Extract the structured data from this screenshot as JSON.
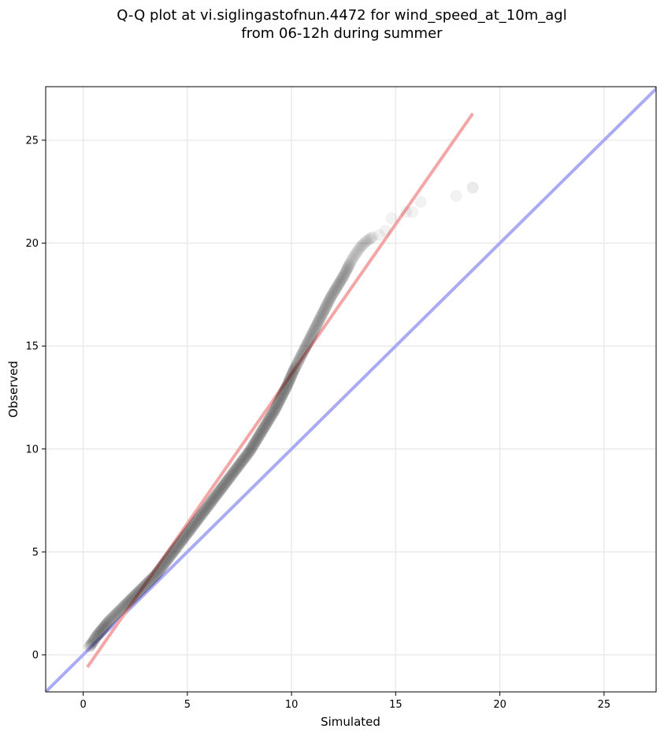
{
  "chart_data": {
    "type": "scatter",
    "title_lines": [
      "Q-Q plot at vi.siglingastofnun.4472 for wind_speed_at_10m_agl",
      "from 06-12h during summer"
    ],
    "xlabel": "Simulated",
    "ylabel": "Observed",
    "xlim": [
      -1.8,
      27.5
    ],
    "ylim": [
      -1.8,
      27.6
    ],
    "x_ticks": [
      0,
      5,
      10,
      15,
      20,
      25
    ],
    "y_ticks": [
      0,
      5,
      10,
      15,
      20,
      25
    ],
    "grid": true,
    "identity_line": {
      "x": [
        -1.8,
        27.5
      ],
      "y": [
        -1.8,
        27.5
      ],
      "color": "#aaaaf5"
    },
    "fit_line": {
      "x": [
        0.2,
        18.7
      ],
      "y": [
        -0.6,
        26.3
      ],
      "color": "#f4a6a6"
    },
    "points_color": "#000000",
    "series": [
      {
        "x": [
          0.3,
          0.45,
          0.6,
          0.8,
          1.0,
          1.2,
          1.4,
          1.6,
          1.8,
          2.0,
          2.3,
          2.6,
          2.9,
          3.2,
          3.5,
          3.8,
          4.1,
          4.4,
          4.7,
          5.0,
          5.3,
          5.6,
          5.9,
          6.2,
          6.5,
          6.8,
          7.1,
          7.4,
          7.7,
          8.0,
          8.3,
          8.6,
          8.9,
          9.2,
          9.5,
          9.8,
          10.1,
          10.4,
          10.7,
          11.0,
          11.3,
          11.6,
          11.9,
          12.2,
          12.5,
          12.7,
          12.9,
          13.1,
          13.3,
          13.6,
          13.9,
          14.2,
          14.5,
          14.8,
          15.5,
          15.8,
          16.2,
          17.9,
          18.7
        ],
        "y": [
          0.4,
          0.6,
          0.85,
          1.1,
          1.35,
          1.6,
          1.8,
          2.0,
          2.2,
          2.4,
          2.7,
          3.0,
          3.3,
          3.6,
          3.9,
          4.3,
          4.7,
          5.1,
          5.5,
          5.9,
          6.3,
          6.7,
          7.1,
          7.5,
          7.9,
          8.3,
          8.7,
          9.1,
          9.5,
          9.9,
          10.4,
          10.9,
          11.4,
          11.9,
          12.5,
          13.1,
          13.8,
          14.4,
          15.0,
          15.6,
          16.2,
          16.8,
          17.4,
          17.9,
          18.4,
          18.8,
          19.2,
          19.5,
          19.8,
          20.1,
          20.3,
          20.4,
          20.6,
          21.2,
          21.5,
          21.5,
          22.0,
          22.3,
          22.7
        ]
      }
    ]
  }
}
